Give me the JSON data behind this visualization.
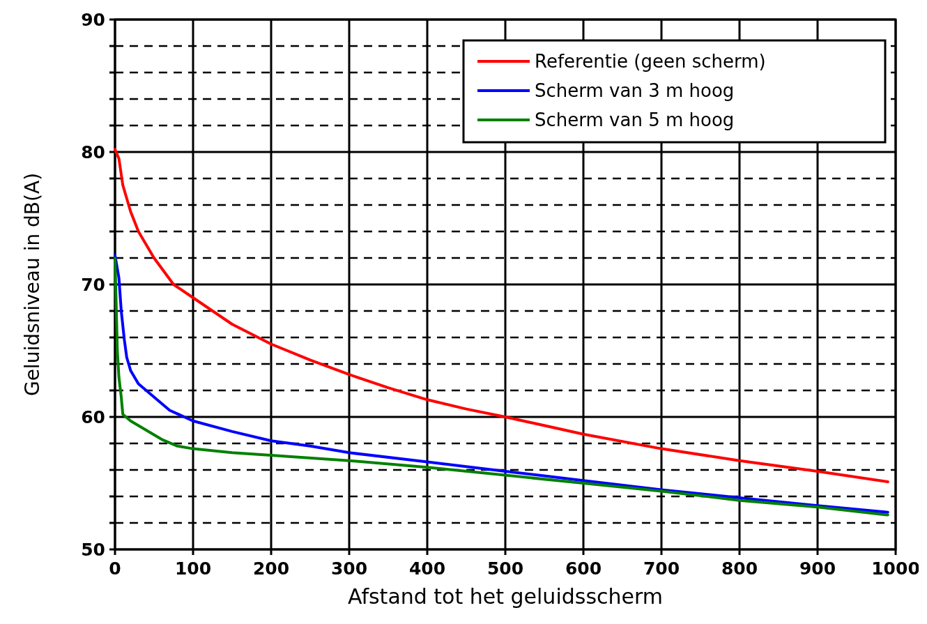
{
  "chart_data": {
    "type": "line",
    "xlabel": "Afstand tot het geluidsscherm",
    "ylabel": "Geluidsniveau in dB(A)",
    "xlim": [
      0,
      1000
    ],
    "xticks": [
      0,
      100,
      200,
      300,
      400,
      500,
      600,
      700,
      800,
      900,
      1000
    ],
    "ylim": [
      50,
      90
    ],
    "yticks": [
      50,
      {
        "value": 52,
        "label": null
      },
      {
        "value": 54,
        "label": null
      },
      {
        "value": 56,
        "label": null
      },
      {
        "value": 58,
        "label": null
      },
      60,
      {
        "value": 62,
        "label": null
      },
      {
        "value": 64,
        "label": null
      },
      {
        "value": 66,
        "label": null
      },
      {
        "value": 68,
        "label": null
      },
      70,
      {
        "value": 72,
        "label": null
      },
      {
        "value": 74,
        "label": null
      },
      {
        "value": 76,
        "label": null
      },
      {
        "value": 78,
        "label": null
      },
      80,
      {
        "value": 82,
        "label": null
      },
      {
        "value": 84,
        "label": null
      },
      {
        "value": 86,
        "label": null
      },
      {
        "value": 88,
        "label": null
      },
      90
    ],
    "grid": true,
    "legend": "top right",
    "line_style": "solid",
    "marker": "none",
    "series": [
      {
        "name": "Referentie (geen scherm)",
        "color": "#ff0000",
        "x": [
          0,
          5,
          10,
          20,
          30,
          50,
          75,
          100,
          150,
          200,
          250,
          300,
          350,
          400,
          450,
          500,
          600,
          700,
          800,
          900,
          990
        ],
        "values": [
          80.2,
          79.5,
          77.5,
          75.5,
          74,
          72,
          70,
          69,
          67,
          65.5,
          64.3,
          63.2,
          62.2,
          61.3,
          60.6,
          60,
          58.7,
          57.6,
          56.7,
          55.9,
          55.1
        ]
      },
      {
        "name": "Scherm van 3 m hoog",
        "color": "#0000ff",
        "x": [
          0,
          5,
          8,
          12,
          15,
          20,
          30,
          50,
          70,
          100,
          150,
          200,
          250,
          300,
          400,
          500,
          600,
          700,
          800,
          900,
          990
        ],
        "values": [
          72.2,
          70.5,
          68,
          65.8,
          64.5,
          63.5,
          62.5,
          61.5,
          60.5,
          59.7,
          58.9,
          58.2,
          57.8,
          57.3,
          56.6,
          55.9,
          55.2,
          54.5,
          53.9,
          53.3,
          52.8
        ]
      },
      {
        "name": "Scherm van 5 m hoog",
        "color": "#008000",
        "x": [
          0,
          3,
          5,
          8,
          10,
          20,
          40,
          60,
          80,
          100,
          150,
          200,
          300,
          400,
          500,
          600,
          700,
          800,
          900,
          990
        ],
        "values": [
          72,
          65,
          63,
          61.5,
          60.2,
          59.7,
          59,
          58.3,
          57.8,
          57.6,
          57.3,
          57.1,
          56.7,
          56.2,
          55.6,
          55,
          54.4,
          53.7,
          53.2,
          52.6
        ]
      }
    ]
  }
}
